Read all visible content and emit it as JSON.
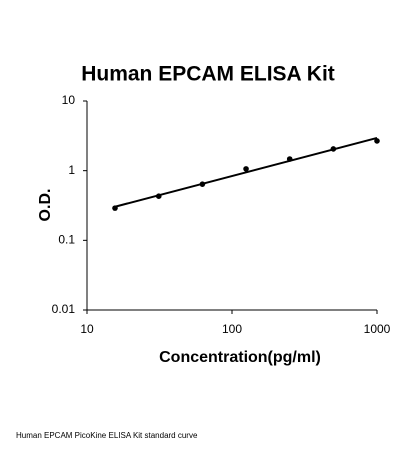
{
  "chart_data": {
    "type": "scatter",
    "title": "Human EPCAM ELISA Kit",
    "x_label": "Concentration(pg/ml)",
    "y_label": "O.D.",
    "caption": "Human EPCAM PicoKine ELISA Kit standard curve",
    "x": [
      15.6,
      31.25,
      62.5,
      125,
      250,
      500,
      1000
    ],
    "values": [
      0.29,
      0.43,
      0.64,
      1.06,
      1.47,
      2.05,
      2.67
    ],
    "color": "#000000",
    "trendline": "power",
    "xscale": "log",
    "yscale": "log",
    "xlim": [
      10,
      1000
    ],
    "ylim": [
      0.01,
      10
    ],
    "xticks": [
      10,
      100,
      1000
    ],
    "yticks": [
      0.01,
      0.1,
      1,
      10
    ],
    "grid": false
  }
}
